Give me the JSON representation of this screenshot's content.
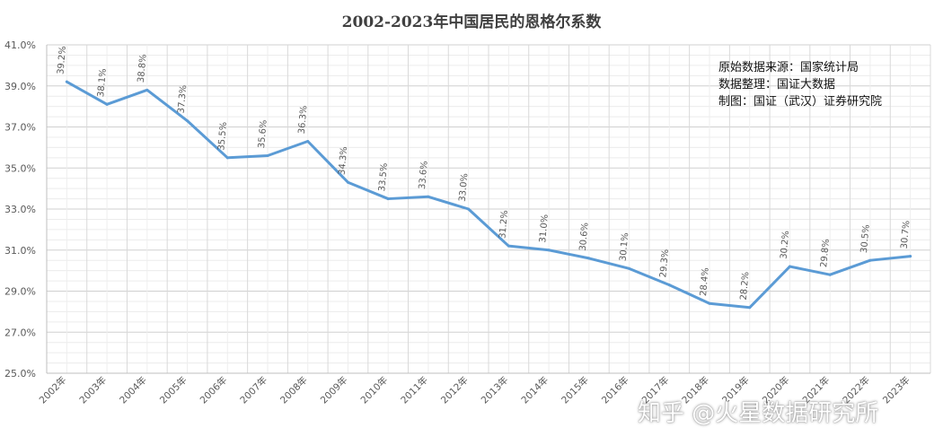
{
  "chart_data": {
    "type": "line",
    "title": "2002-2023年中国居民的恩格尔系数",
    "categories": [
      "2002年",
      "2003年",
      "2004年",
      "2005年",
      "2006年",
      "2007年",
      "2008年",
      "2009年",
      "2010年",
      "2011年",
      "2012年",
      "2013年",
      "2014年",
      "2015年",
      "2016年",
      "2017年",
      "2018年",
      "2019年",
      "2020年",
      "2021年",
      "2022年",
      "2023年"
    ],
    "series": [
      {
        "values": [
          39.2,
          38.1,
          38.8,
          37.3,
          35.5,
          35.6,
          36.3,
          34.3,
          33.5,
          33.6,
          33.0,
          31.2,
          31.0,
          30.6,
          30.1,
          29.3,
          28.4,
          28.2,
          30.2,
          29.8,
          30.5,
          30.7
        ],
        "labels": [
          "39.2%",
          "38.1%",
          "38.8%",
          "37.3%",
          "35.5%",
          "35.6%",
          "36.3%",
          "34.3%",
          "33.5%",
          "33.6%",
          "33.0%",
          "31.2%",
          "31.0%",
          "30.6%",
          "30.1%",
          "29.3%",
          "28.4%",
          "28.2%",
          "30.2%",
          "29.8%",
          "30.5%",
          "30.7%"
        ],
        "color": "#5b9bd5"
      }
    ],
    "yticks": [
      "41.0%",
      "39.0%",
      "37.0%",
      "35.0%",
      "33.0%",
      "31.0%",
      "29.0%",
      "27.0%",
      "25.0%"
    ],
    "ylim": [
      25,
      41
    ],
    "grid": true,
    "legend": "none"
  },
  "source_note": {
    "line1": "原始数据来源：国家统计局",
    "line2": "数据整理：国证大数据",
    "line3": "制图：国证（武汉）证券研究院"
  },
  "watermark": "知乎 @火星数据研究所"
}
